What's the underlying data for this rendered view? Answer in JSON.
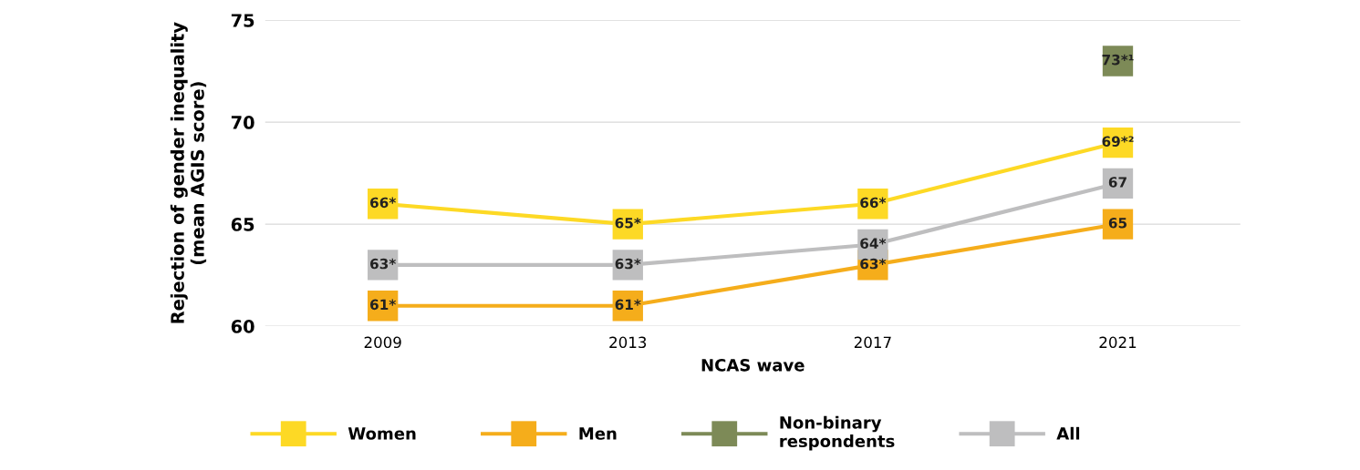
{
  "chart_data": {
    "type": "line",
    "xlabel": "NCAS wave",
    "ylabel": "Rejection of gender inequality\n(mean AGIS score)",
    "categories": [
      "2009",
      "2013",
      "2017",
      "2021"
    ],
    "series": [
      {
        "name": "Women",
        "color": "#fdd925",
        "values": [
          66,
          65,
          66,
          69
        ],
        "value_labels": [
          "66*",
          "65*",
          "66*",
          "69*²"
        ]
      },
      {
        "name": "Men",
        "color": "#f5ad1b",
        "values": [
          61,
          61,
          63,
          65
        ],
        "value_labels": [
          "61*",
          "61*",
          "63*",
          "65"
        ]
      },
      {
        "name": "Non-binary\nrespondents",
        "color": "#7d8a57",
        "values": [
          null,
          null,
          null,
          73
        ],
        "value_labels": [
          null,
          null,
          null,
          "73*¹"
        ]
      },
      {
        "name": "All",
        "color": "#bebebf",
        "values": [
          63,
          63,
          64,
          67
        ],
        "value_labels": [
          "63*",
          "63*",
          "64*",
          "67"
        ]
      }
    ],
    "ylim": [
      60,
      75
    ],
    "yticks": [
      60,
      65,
      70,
      75
    ],
    "grid": "y",
    "legend": "bottom",
    "marker": "square",
    "line_style": "solid"
  }
}
